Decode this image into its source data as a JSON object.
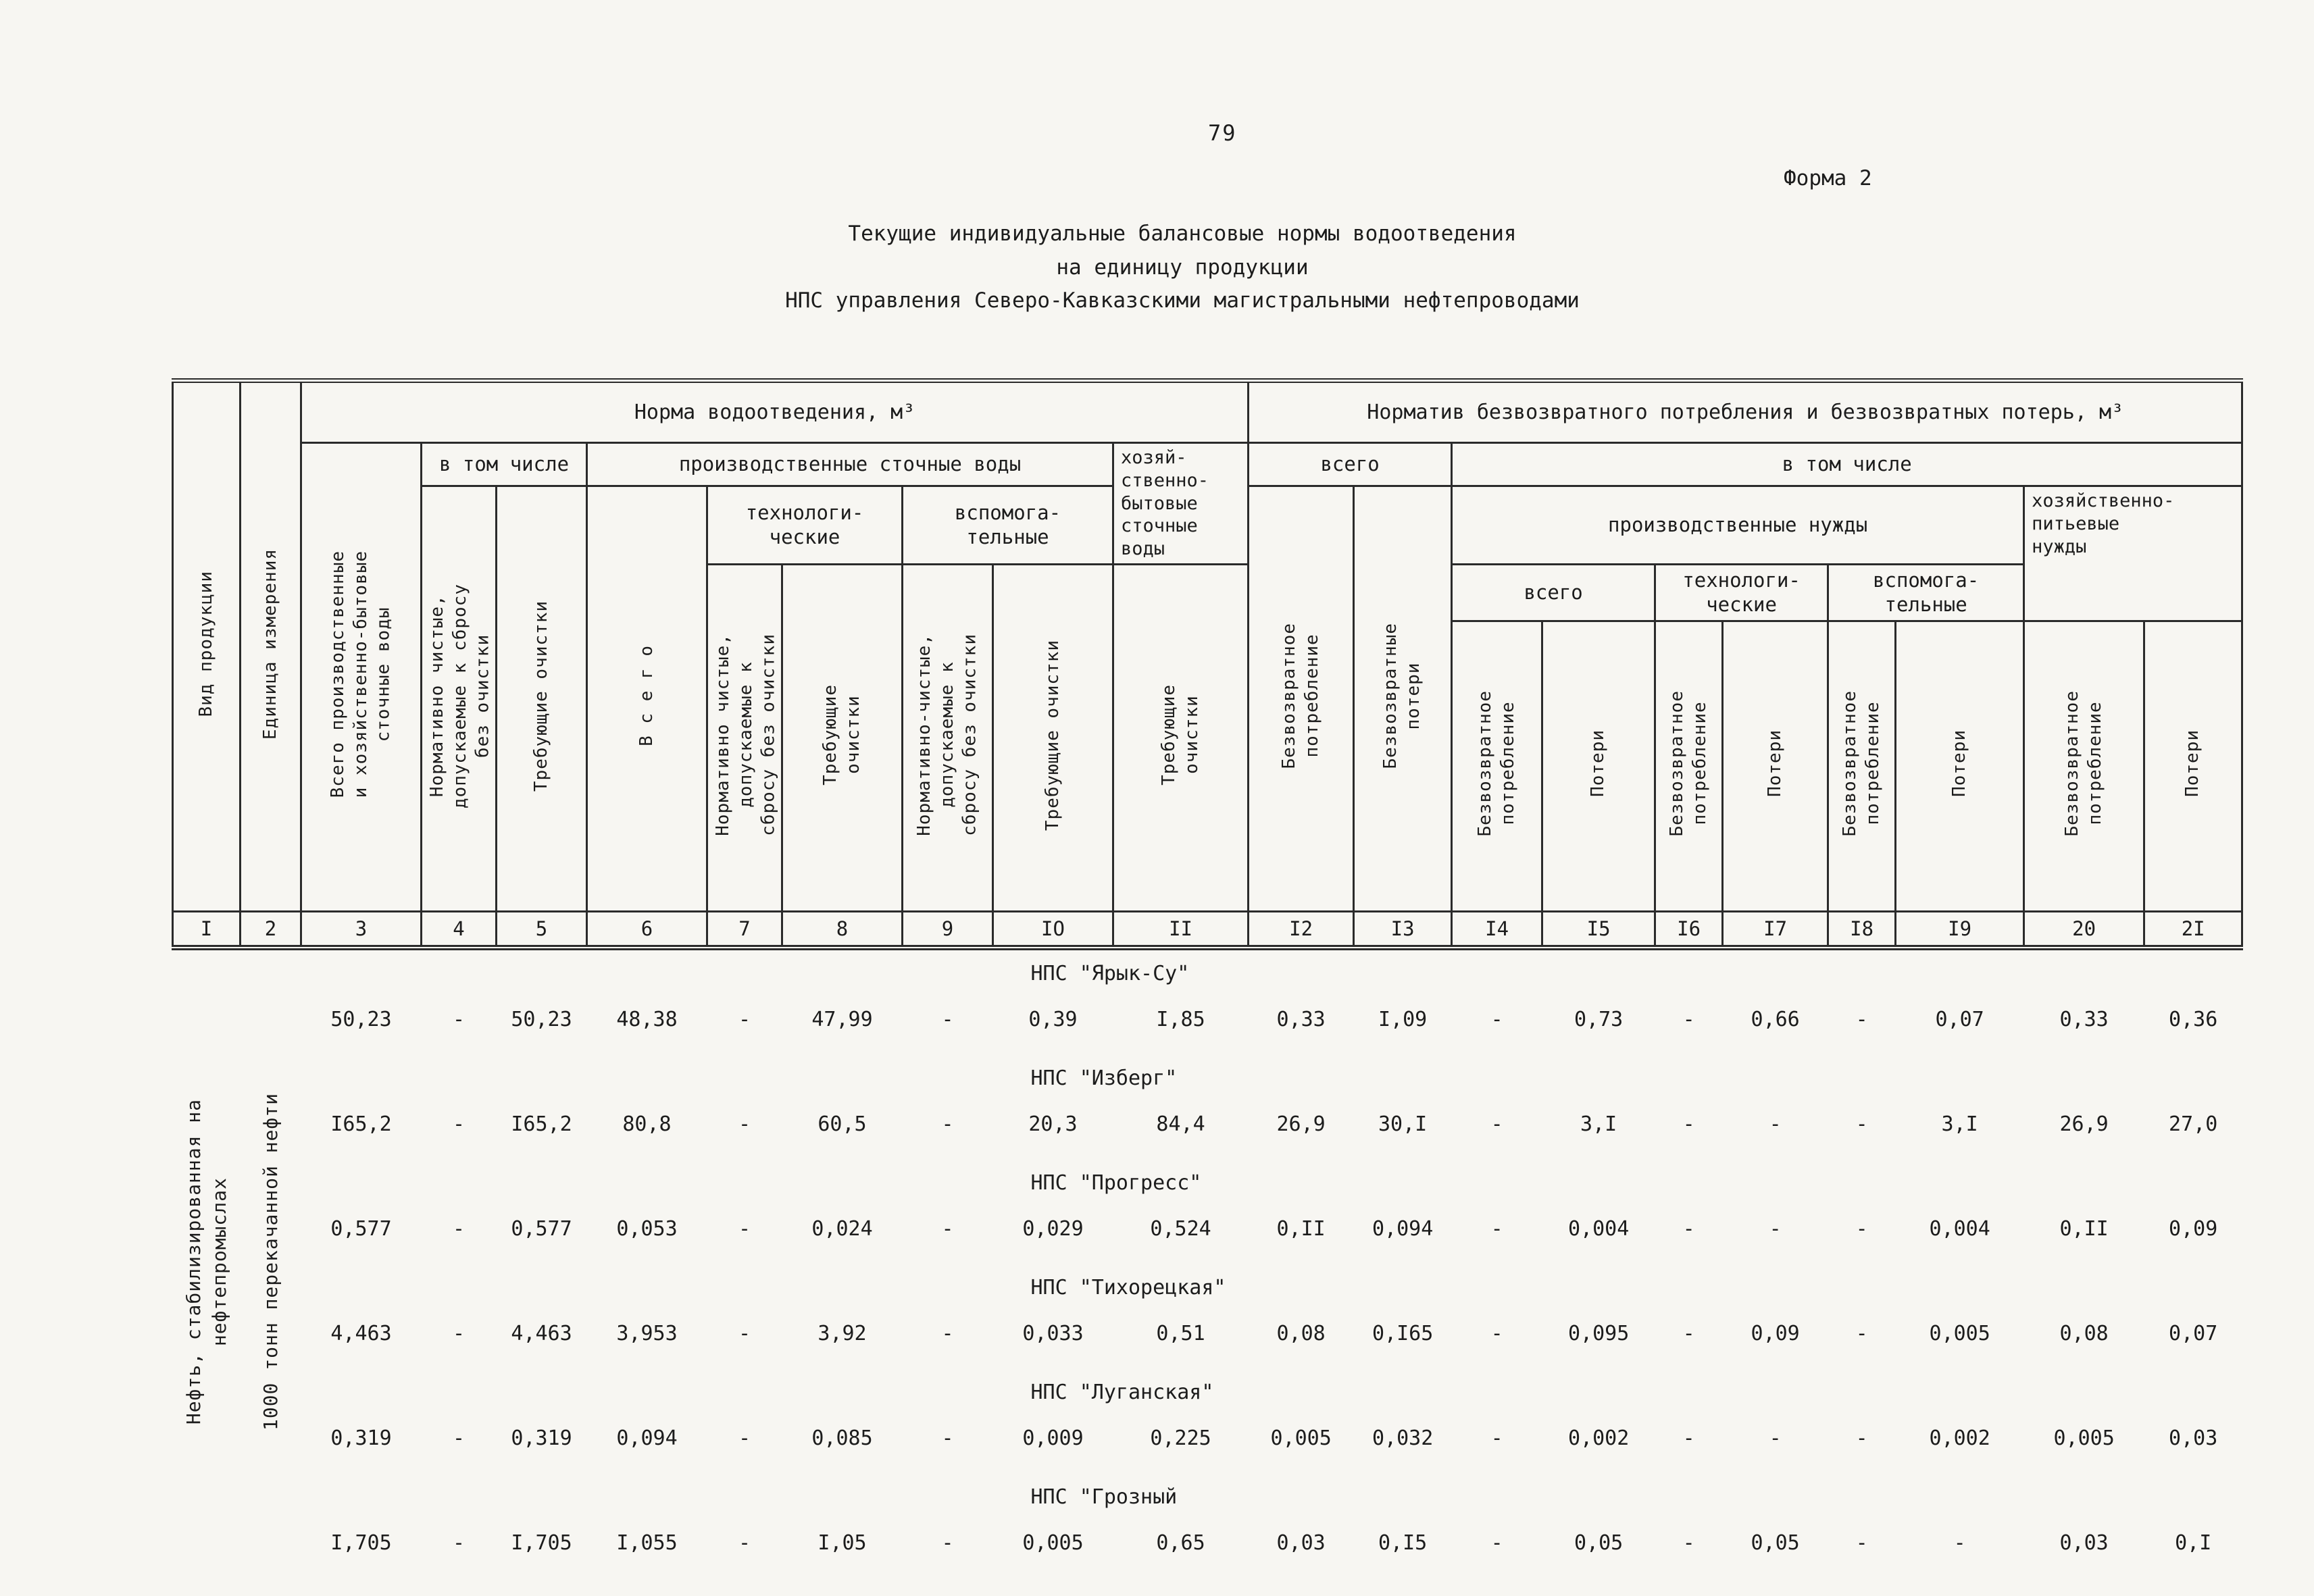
{
  "page": {
    "number": "79",
    "form_label": "Форма 2",
    "title": [
      "Текущие индивидуальные балансовые нормы водоотведения",
      "на единицу продукции",
      "НПС управления Северо-Кавказскими магистральными нефтепроводами"
    ]
  },
  "table": {
    "header": {
      "vid": "Вид продукции",
      "unit": "Единица измерения",
      "norma": "Норма водоотведения, м³",
      "normativ": "Норматив безвозвратного потребления и безвозвратных потерь, м³",
      "v_tom_chisle": "в том числе",
      "proizv_stoch": "производственные сточные воды",
      "hoz_byt": "хозяй-\nственно-\nбытовые\nсточные\nводы",
      "vsego": "всего",
      "tekhno": "технологи-\nческие",
      "vspom": "вспомога-\nтельные",
      "proizv_nuzhdy": "производственные нужды",
      "hoz_pit": "хозяйственно-\nпитьевые\nнужды",
      "col3": "Всего производственные\nи хозяйственно-бытовые\nсточные воды",
      "norm_a": "Нормативно чистые,\nдопускаемые к сбросу\nбез очистки",
      "col7": "Нормативно чистые,\nдопускаемые к\nсбросу без очистки",
      "col9": "Нормативно-чистые,\nдопускаемые к\nсбросу без очистки",
      "treb1": "Требующие очистки",
      "treb2": "Требующие\nочистки",
      "vsego_sp": "В с е г о",
      "bezvozvratnoe": "Безвозвратное\nпотребление",
      "bezvozvratnye_poteri": "Безвозвратные\nпотери",
      "poteri": "Потери",
      "numbers": [
        "I",
        "2",
        "3",
        "4",
        "5",
        "6",
        "7",
        "8",
        "9",
        "IO",
        "II",
        "I2",
        "I3",
        "I4",
        "I5",
        "I6",
        "I7",
        "I8",
        "I9",
        "20",
        "2I"
      ]
    },
    "product": "Нефть, стабилизированная на\nнефтепромыслах",
    "unit_value": "1000 тонн перекачанной нефти",
    "stations": [
      {
        "name": "НПС \"Ярык-Су\"",
        "values": [
          "50,23",
          "-",
          "50,23",
          "48,38",
          "-",
          "47,99",
          "-",
          "0,39",
          "I,85",
          "0,33",
          "I,09",
          "-",
          "0,73",
          "-",
          "0,66",
          "-",
          "0,07",
          "0,33",
          "0,36"
        ]
      },
      {
        "name": "НПС \"Изберг\"",
        "values": [
          "I65,2",
          "-",
          "I65,2",
          "80,8",
          "-",
          "60,5",
          "-",
          "20,3",
          "84,4",
          "26,9",
          "30,I",
          "-",
          "3,I",
          "-",
          "-",
          "-",
          "3,I",
          "26,9",
          "27,0"
        ]
      },
      {
        "name": "НПС \"Прогресс\"",
        "values": [
          "0,577",
          "-",
          "0,577",
          "0,053",
          "-",
          "0,024",
          "-",
          "0,029",
          "0,524",
          "0,II",
          "0,094",
          "-",
          "0,004",
          "-",
          "-",
          "-",
          "0,004",
          "0,II",
          "0,09"
        ]
      },
      {
        "name": "НПС \"Тихорецкая\"",
        "values": [
          "4,463",
          "-",
          "4,463",
          "3,953",
          "-",
          "3,92",
          "-",
          "0,033",
          "0,51",
          "0,08",
          "0,I65",
          "-",
          "0,095",
          "-",
          "0,09",
          "-",
          "0,005",
          "0,08",
          "0,07"
        ]
      },
      {
        "name": "НПС \"Луганская\"",
        "values": [
          "0,319",
          "-",
          "0,319",
          "0,094",
          "-",
          "0,085",
          "-",
          "0,009",
          "0,225",
          "0,005",
          "0,032",
          "-",
          "0,002",
          "-",
          "-",
          "-",
          "0,002",
          "0,005",
          "0,03"
        ]
      },
      {
        "name": "НПС \"Грозный",
        "values": [
          "I,705",
          "-",
          "I,705",
          "I,055",
          "-",
          "I,05",
          "-",
          "0,005",
          "0,65",
          "0,03",
          "0,I5",
          "-",
          "0,05",
          "-",
          "0,05",
          "-",
          "-",
          "0,03",
          "0,I"
        ]
      }
    ]
  }
}
